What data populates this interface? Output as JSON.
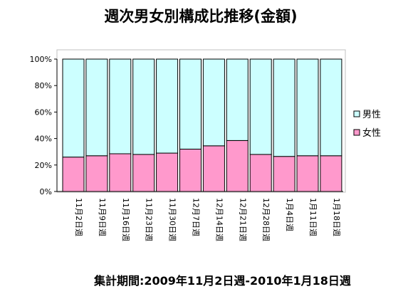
{
  "chart_data": {
    "type": "bar",
    "stacked": true,
    "percent": true,
    "title": "週次男女別構成比推移(金額)",
    "categories": [
      "11月2日週",
      "11月9日週",
      "11月16日週",
      "11月23日週",
      "11月30日週",
      "12月7日週",
      "12月14日週",
      "12月21日週",
      "12月28日週",
      "1月4日週",
      "1月11日週",
      "1月18日週"
    ],
    "series": [
      {
        "name": "女性",
        "color": "#ff99cc",
        "values": [
          26,
          27,
          28.5,
          28,
          29,
          32,
          34.5,
          38.5,
          28,
          26.5,
          27,
          27
        ]
      },
      {
        "name": "男性",
        "color": "#ccffff",
        "values": [
          74,
          73,
          71.5,
          72,
          71,
          68,
          65.5,
          61.5,
          72,
          73.5,
          73,
          73
        ]
      }
    ],
    "ylim": [
      0,
      100
    ],
    "yticks": [
      "0%",
      "20%",
      "40%",
      "60%",
      "80%",
      "100%"
    ],
    "legend_position": "right",
    "legend_items": [
      "男性",
      "女性"
    ],
    "grid": false
  },
  "footer": "集計期間:2009年11月2日週-2010年1月18日週"
}
